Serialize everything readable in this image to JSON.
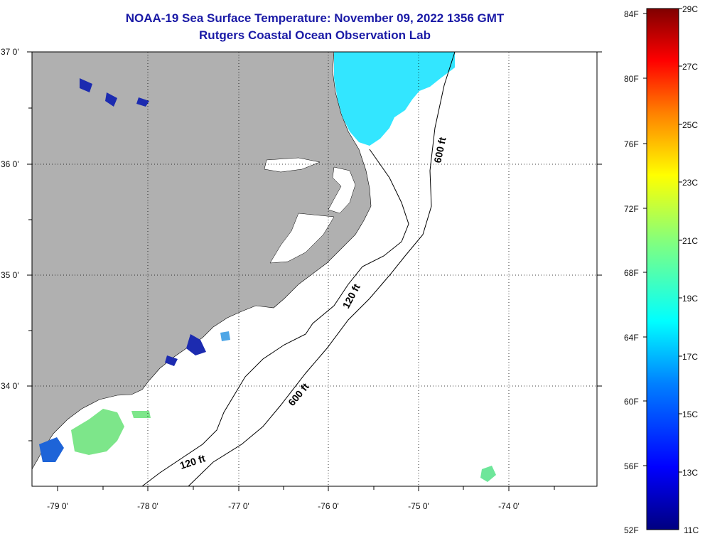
{
  "title": {
    "line1": "NOAA-19 Sea Surface Temperature:  November 09, 2022 1356 GMT",
    "line2": "Rutgers Coastal Ocean Observation Lab"
  },
  "map": {
    "lat_labels": [
      "37 0'",
      "36 0'",
      "35 0'",
      "34 0'"
    ],
    "lon_labels": [
      "-79 0'",
      "-78 0'",
      "-77 0'",
      "-76 0'",
      "-75 0'",
      "-74 0'"
    ],
    "contours": {
      "shelf": "120 ft",
      "slope": "600 ft"
    },
    "colors": {
      "land": "#b0b0b0",
      "ocean": "#ffffff",
      "warm_water": "#33e6ff",
      "cold_water": "#1c2bb0"
    }
  },
  "colorbar": {
    "f_labels": [
      "84F",
      "80F",
      "76F",
      "72F",
      "68F",
      "64F",
      "60F",
      "56F",
      "52F"
    ],
    "c_labels": [
      "29C",
      "27C",
      "25C",
      "23C",
      "21C",
      "19C",
      "17C",
      "15C",
      "13C",
      "11C"
    ]
  }
}
